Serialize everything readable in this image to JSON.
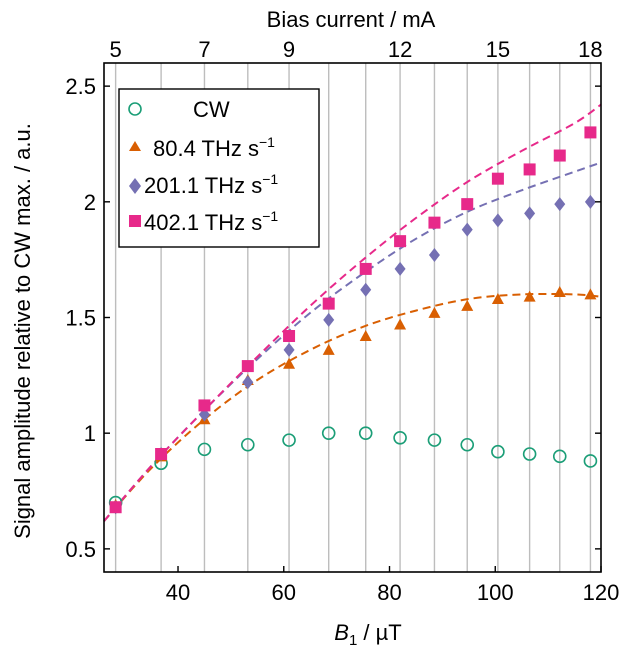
{
  "chart_data": {
    "type": "scatter",
    "title": "",
    "xlabel_main": "B",
    "xlabel_sub": "1",
    "xlabel_unit": " / µT",
    "ylabel": "Signal amplitude relative to CW max. / a.u.",
    "top_xlabel": "Bias current / mA",
    "xlim": [
      26,
      120
    ],
    "ylim": [
      0.4,
      2.6
    ],
    "grid": "vertical lines at each measurement point",
    "legend_placement": "top-left",
    "x_ticks": [
      {
        "value": 40,
        "label": "40"
      },
      {
        "value": 60,
        "label": "60"
      },
      {
        "value": 80,
        "label": "80"
      },
      {
        "value": 100,
        "label": "100"
      },
      {
        "value": 120,
        "label": "120"
      }
    ],
    "y_ticks": [
      {
        "value": 0.5,
        "label": "0.5"
      },
      {
        "value": 1,
        "label": "1"
      },
      {
        "value": 1.5,
        "label": "1.5"
      },
      {
        "value": 2,
        "label": "2"
      },
      {
        "value": 2.5,
        "label": "2.5"
      }
    ],
    "top_ticks": [
      {
        "x": 28.2,
        "label": "5"
      },
      {
        "x": 45.0,
        "label": "7"
      },
      {
        "x": 61.0,
        "label": "9"
      },
      {
        "x": 82.0,
        "label": "12"
      },
      {
        "x": 100.5,
        "label": "15"
      },
      {
        "x": 118.0,
        "label": "18"
      }
    ],
    "grid_x": [
      28.2,
      36.8,
      45.0,
      53.2,
      61.0,
      68.5,
      75.5,
      82.0,
      88.5,
      94.7,
      100.5,
      106.5,
      112.2,
      118.0
    ],
    "series": [
      {
        "name": "CW",
        "marker": "circle-open",
        "color": "#1b9e77",
        "x": [
          28.2,
          36.8,
          45.0,
          53.2,
          61.0,
          68.5,
          75.5,
          82.0,
          88.5,
          94.7,
          100.5,
          106.5,
          112.2,
          118.0
        ],
        "y": [
          0.7,
          0.87,
          0.93,
          0.95,
          0.97,
          1.0,
          1.0,
          0.98,
          0.97,
          0.95,
          0.92,
          0.91,
          0.9,
          0.88
        ]
      },
      {
        "name_main": "80.4 THz s",
        "name_sup": "−1",
        "marker": "triangle",
        "color": "#d95f02",
        "x": [
          28.2,
          36.8,
          45.0,
          53.2,
          61.0,
          68.5,
          75.5,
          82.0,
          88.5,
          94.7,
          100.5,
          106.5,
          112.2,
          118.0
        ],
        "y": [
          0.69,
          0.9,
          1.06,
          1.23,
          1.3,
          1.36,
          1.42,
          1.47,
          1.52,
          1.55,
          1.58,
          1.59,
          1.61,
          1.6
        ],
        "fit": [
          [
            26,
            0.62
          ],
          [
            35,
            0.85
          ],
          [
            45,
            1.06
          ],
          [
            55,
            1.23
          ],
          [
            65,
            1.36
          ],
          [
            75,
            1.46
          ],
          [
            85,
            1.53
          ],
          [
            95,
            1.58
          ],
          [
            105,
            1.6
          ],
          [
            115,
            1.6
          ],
          [
            120,
            1.59
          ]
        ]
      },
      {
        "name_main": "201.1 THz s",
        "name_sup": "−1",
        "marker": "diamond",
        "color": "#7570b3",
        "x": [
          28.2,
          36.8,
          45.0,
          53.2,
          61.0,
          68.5,
          75.5,
          82.0,
          88.5,
          94.7,
          100.5,
          106.5,
          112.2,
          118.0
        ],
        "y": [
          0.68,
          0.91,
          1.08,
          1.22,
          1.36,
          1.49,
          1.62,
          1.71,
          1.77,
          1.88,
          1.92,
          1.95,
          1.99,
          2.0
        ],
        "fit": [
          [
            26,
            0.62
          ],
          [
            35,
            0.86
          ],
          [
            45,
            1.1
          ],
          [
            55,
            1.32
          ],
          [
            65,
            1.52
          ],
          [
            75,
            1.69
          ],
          [
            85,
            1.84
          ],
          [
            95,
            1.96
          ],
          [
            105,
            2.05
          ],
          [
            115,
            2.13
          ],
          [
            120,
            2.17
          ]
        ]
      },
      {
        "name_main": "402.1 THz s",
        "name_sup": "−1",
        "marker": "square",
        "color": "#e7298a",
        "x": [
          28.2,
          36.8,
          45.0,
          53.2,
          61.0,
          68.5,
          75.5,
          82.0,
          88.5,
          94.7,
          100.5,
          106.5,
          112.2,
          118.0
        ],
        "y": [
          0.68,
          0.91,
          1.12,
          1.29,
          1.42,
          1.56,
          1.71,
          1.83,
          1.91,
          1.99,
          2.1,
          2.14,
          2.2,
          2.3
        ],
        "fit": [
          [
            26,
            0.62
          ],
          [
            35,
            0.86
          ],
          [
            45,
            1.1
          ],
          [
            55,
            1.33
          ],
          [
            65,
            1.55
          ],
          [
            75,
            1.75
          ],
          [
            85,
            1.93
          ],
          [
            95,
            2.09
          ],
          [
            105,
            2.22
          ],
          [
            115,
            2.34
          ],
          [
            120,
            2.42
          ]
        ]
      }
    ]
  }
}
